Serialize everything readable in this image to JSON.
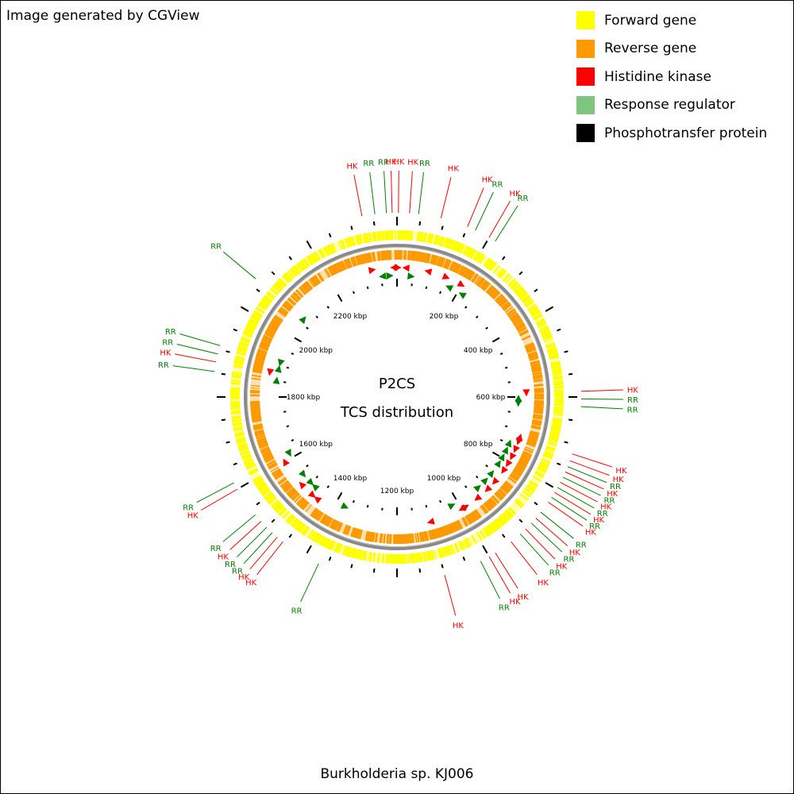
{
  "credit": "Image generated by CGView",
  "organism": "Burkholderia sp. KJ006",
  "center": {
    "line1": "P2CS",
    "line2": "TCS distribution"
  },
  "legend": [
    {
      "label": "Forward gene",
      "color": "#FFFF00"
    },
    {
      "label": "Reverse gene",
      "color": "#FF9900"
    },
    {
      "label": "Histidine kinase",
      "color": "#FF0000"
    },
    {
      "label": "Response regulator",
      "color": "#7FC47F"
    },
    {
      "label": "Phosphotransfer protein",
      "color": "#000000"
    }
  ],
  "sequence_length_kbp": 2400,
  "kbp_ticks": [
    {
      "value": 200,
      "label": "200 kbp"
    },
    {
      "value": 400,
      "label": "400 kbp"
    },
    {
      "value": 600,
      "label": "600 kbp"
    },
    {
      "value": 800,
      "label": "800 kbp"
    },
    {
      "value": 1000,
      "label": "1000 kbp"
    },
    {
      "value": 1200,
      "label": "1200 kbp"
    },
    {
      "value": 1400,
      "label": "1400 kbp"
    },
    {
      "value": 1600,
      "label": "1600 kbp"
    },
    {
      "value": 1800,
      "label": "1800 kbp"
    },
    {
      "value": 2000,
      "label": "2000 kbp"
    },
    {
      "value": 2200,
      "label": "2200 kbp"
    }
  ],
  "tcs_colors": {
    "HK": "#FF0000",
    "RR": "#008000"
  },
  "tcs_labels": [
    {
      "type": "HK",
      "pos": 2327
    },
    {
      "type": "RR",
      "pos": 2354
    },
    {
      "type": "RR",
      "pos": 2378
    },
    {
      "type": "HK",
      "pos": 2390
    },
    {
      "type": "HK",
      "pos": 3
    },
    {
      "type": "HK",
      "pos": 26
    },
    {
      "type": "RR",
      "pos": 45
    },
    {
      "type": "HK",
      "pos": 92
    },
    {
      "type": "HK",
      "pos": 150
    },
    {
      "type": "RR",
      "pos": 168
    },
    {
      "type": "HK",
      "pos": 200
    },
    {
      "type": "RR",
      "pos": 215
    },
    {
      "type": "HK",
      "pos": 588
    },
    {
      "type": "RR",
      "pos": 604
    },
    {
      "type": "RR",
      "pos": 620
    },
    {
      "type": "HK",
      "pos": 720
    },
    {
      "type": "HK",
      "pos": 735
    },
    {
      "type": "RR",
      "pos": 748
    },
    {
      "type": "HK",
      "pos": 760
    },
    {
      "type": "RR",
      "pos": 772
    },
    {
      "type": "HK",
      "pos": 784
    },
    {
      "type": "RR",
      "pos": 796
    },
    {
      "type": "HK",
      "pos": 808
    },
    {
      "type": "RR",
      "pos": 820
    },
    {
      "type": "HK",
      "pos": 832
    },
    {
      "type": "RR",
      "pos": 858
    },
    {
      "type": "HK",
      "pos": 874
    },
    {
      "type": "RR",
      "pos": 888
    },
    {
      "type": "HK",
      "pos": 905
    },
    {
      "type": "RR",
      "pos": 920
    },
    {
      "type": "HK",
      "pos": 945
    },
    {
      "type": "HK",
      "pos": 985
    },
    {
      "type": "HK",
      "pos": 1000
    },
    {
      "type": "RR",
      "pos": 1020
    },
    {
      "type": "HK",
      "pos": 1100
    },
    {
      "type": "RR",
      "pos": 1368
    },
    {
      "type": "HK",
      "pos": 1455
    },
    {
      "type": "HK",
      "pos": 1470
    },
    {
      "type": "RR",
      "pos": 1484
    },
    {
      "type": "RR",
      "pos": 1500
    },
    {
      "type": "HK",
      "pos": 1517
    },
    {
      "type": "RR",
      "pos": 1535
    },
    {
      "type": "HK",
      "pos": 1600
    },
    {
      "type": "RR",
      "pos": 1615
    },
    {
      "type": "RR",
      "pos": 1853
    },
    {
      "type": "HK",
      "pos": 1873
    },
    {
      "type": "RR",
      "pos": 1890
    },
    {
      "type": "RR",
      "pos": 1908
    },
    {
      "type": "RR",
      "pos": 2066
    }
  ]
}
